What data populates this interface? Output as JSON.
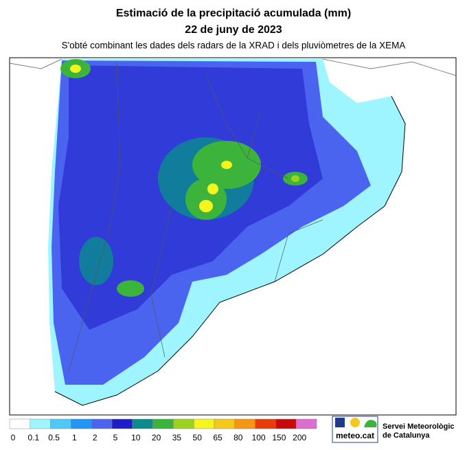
{
  "header": {
    "title": "Estimació de la precipitació acumulada (mm)",
    "date": "22 de juny de 2023",
    "subtitle": "S'obté combinant les dades dels radars de la XRAD i dels pluviòmetres de la XEMA"
  },
  "legend": {
    "levels": [
      0,
      0.1,
      0.5,
      1,
      2,
      5,
      10,
      20,
      35,
      50,
      65,
      80,
      100,
      150,
      200
    ],
    "colors": [
      "#ffffff",
      "#9ff5ff",
      "#4fc8f5",
      "#2396f5",
      "#4a64f0",
      "#1e1ec8",
      "#0a8c8c",
      "#3cb43c",
      "#9bd21e",
      "#f5f51e",
      "#f5c81e",
      "#f59614",
      "#e63c0a",
      "#c80a0a",
      "#dc6ed2"
    ]
  },
  "logo": {
    "brand": "meteo.cat",
    "org_line1": "Servei Meteorològic",
    "org_line2": "de Catalunya"
  }
}
